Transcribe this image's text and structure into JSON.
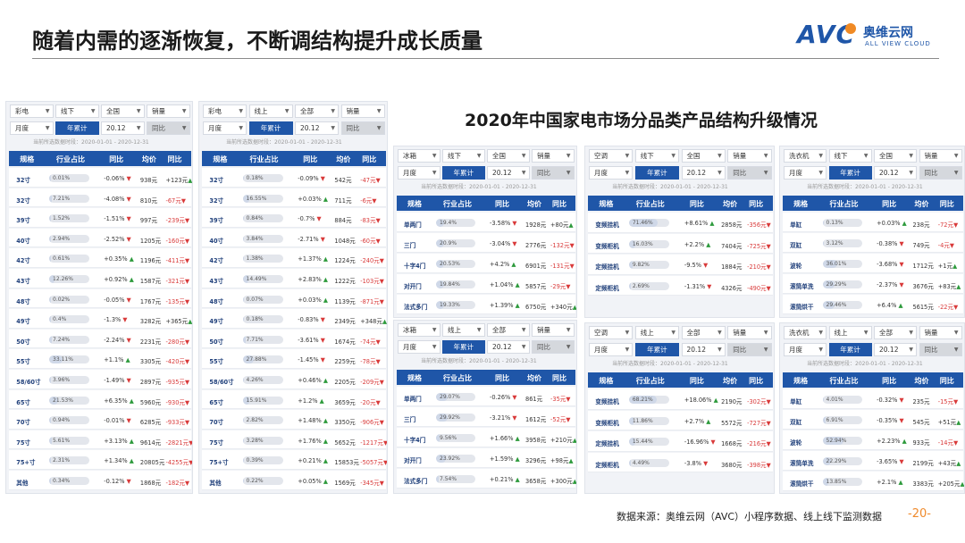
{
  "header": {
    "title": "随着内需的逐渐恢复，不断调结构提升成长质量",
    "logo_text": "AVC",
    "logo_cn": "奥维云网",
    "logo_en": "ALL VIEW CLOUD"
  },
  "chart_title": "2020年中国家电市场分品类产品结构升级情况",
  "footer": {
    "source": "数据来源：奥维云网（AVC）小程序数据、线上线下监测数据",
    "page": "-20-"
  },
  "panels": [
    {
      "left": true,
      "ctrl": {
        "cat": "彩电",
        "channel": "线下",
        "region": "全国",
        "metric": "销量",
        "period": "月度",
        "cum": "年累计",
        "date": "20.12",
        "cmp": "同比"
      },
      "note": "当前所选数据时段：2020-01-01 - 2020-12-31",
      "headers": [
        "规格",
        "行业占比",
        "同比",
        "均价",
        "同比"
      ],
      "rows": [
        [
          "32寸",
          "0.01%",
          "-0.06%",
          "938元",
          "+123元"
        ],
        [
          "32寸",
          "7.21%",
          "-4.08%",
          "810元",
          "-67元"
        ],
        [
          "39寸",
          "1.52%",
          "-1.51%",
          "997元",
          "-239元"
        ],
        [
          "40寸",
          "2.94%",
          "-2.52%",
          "1205元",
          "-160元"
        ],
        [
          "42寸",
          "0.61%",
          "+0.35%",
          "1196元",
          "-411元"
        ],
        [
          "43寸",
          "12.26%",
          "+0.92%",
          "1587元",
          "-321元"
        ],
        [
          "48寸",
          "0.02%",
          "-0.05%",
          "1767元",
          "-135元"
        ],
        [
          "49寸",
          "0.4%",
          "-1.3%",
          "3282元",
          "+365元"
        ],
        [
          "50寸",
          "7.24%",
          "-2.24%",
          "2231元",
          "-280元"
        ],
        [
          "55寸",
          "33.11%",
          "+1.1%",
          "3305元",
          "-420元"
        ],
        [
          "58/60寸",
          "3.96%",
          "-1.49%",
          "2897元",
          "-935元"
        ],
        [
          "65寸",
          "21.53%",
          "+6.35%",
          "5960元",
          "-930元"
        ],
        [
          "70寸",
          "0.94%",
          "-0.01%",
          "6285元",
          "-933元"
        ],
        [
          "75寸",
          "5.61%",
          "+3.13%",
          "9614元",
          "-2821元"
        ],
        [
          "75+寸",
          "2.31%",
          "+1.34%",
          "20805元",
          "-4255元"
        ],
        [
          "其他",
          "0.34%",
          "-0.12%",
          "1868元",
          "-182元"
        ]
      ]
    },
    {
      "ctrl": {
        "cat": "彩电",
        "channel": "线上",
        "region": "全部",
        "metric": "销量",
        "period": "月度",
        "cum": "年累计",
        "date": "20.12",
        "cmp": "同比"
      },
      "note": "当前所选数据时段：2020-01-01 - 2020-12-31",
      "headers": [
        "规格",
        "行业占比",
        "同比",
        "均价",
        "同比"
      ],
      "rows": [
        [
          "32寸",
          "0.18%",
          "-0.09%",
          "542元",
          "-47元"
        ],
        [
          "32寸",
          "16.55%",
          "+0.03%",
          "711元",
          "-6元"
        ],
        [
          "39寸",
          "0.84%",
          "-0.7%",
          "884元",
          "-83元"
        ],
        [
          "40寸",
          "3.84%",
          "-2.71%",
          "1048元",
          "-60元"
        ],
        [
          "42寸",
          "1.38%",
          "+1.37%",
          "1224元",
          "-240元"
        ],
        [
          "43寸",
          "14.49%",
          "+2.83%",
          "1222元",
          "-103元"
        ],
        [
          "48寸",
          "0.07%",
          "+0.03%",
          "1139元",
          "-871元"
        ],
        [
          "49寸",
          "0.18%",
          "-0.83%",
          "2349元",
          "+348元"
        ],
        [
          "50寸",
          "7.71%",
          "-3.61%",
          "1674元",
          "-74元"
        ],
        [
          "55寸",
          "27.88%",
          "-1.45%",
          "2259元",
          "-78元"
        ],
        [
          "58/60寸",
          "4.26%",
          "+0.46%",
          "2205元",
          "-209元"
        ],
        [
          "65寸",
          "15.91%",
          "+1.2%",
          "3659元",
          "-20元"
        ],
        [
          "70寸",
          "2.82%",
          "+1.48%",
          "3350元",
          "-906元"
        ],
        [
          "75寸",
          "3.28%",
          "+1.76%",
          "5652元",
          "-1217元"
        ],
        [
          "75+寸",
          "0.39%",
          "+0.21%",
          "15853元",
          "-5057元"
        ],
        [
          "其他",
          "0.22%",
          "+0.05%",
          "1569元",
          "-345元"
        ]
      ]
    },
    {
      "ctrl": {
        "cat": "冰箱",
        "channel": "线下",
        "region": "全国",
        "metric": "销量",
        "period": "月度",
        "cum": "年累计",
        "date": "20.12",
        "cmp": "同比"
      },
      "note": "当前所选数据时段：2020-01-01 - 2020-12-31",
      "headers": [
        "规格",
        "行业占比",
        "同比",
        "均价",
        "同比"
      ],
      "rows": [
        [
          "单两门",
          "19.4%",
          "-3.58%",
          "1928元",
          "+80元"
        ],
        [
          "三门",
          "20.9%",
          "-3.04%",
          "2776元",
          "-132元"
        ],
        [
          "十字4门",
          "20.53%",
          "+4.2%",
          "6901元",
          "-131元"
        ],
        [
          "对开门",
          "19.84%",
          "+1.04%",
          "5857元",
          "-29元"
        ],
        [
          "法式多门",
          "19.33%",
          "+1.39%",
          "6750元",
          "+340元"
        ]
      ]
    },
    {
      "ctrl": {
        "cat": "空调",
        "channel": "线下",
        "region": "全国",
        "metric": "销量",
        "period": "月度",
        "cum": "年累计",
        "date": "20.12",
        "cmp": "同比"
      },
      "note": "当前所选数据时段：2020-01-01 - 2020-12-31",
      "headers": [
        "规格",
        "行业占比",
        "同比",
        "均价",
        "同比"
      ],
      "rows": [
        [
          "变频挂机",
          "71.46%",
          "+8.61%",
          "2858元",
          "-356元"
        ],
        [
          "变频柜机",
          "16.03%",
          "+2.2%",
          "7404元",
          "-725元"
        ],
        [
          "定频挂机",
          "9.82%",
          "-9.5%",
          "1884元",
          "-210元"
        ],
        [
          "定频柜机",
          "2.69%",
          "-1.31%",
          "4326元",
          "-490元"
        ]
      ]
    },
    {
      "ctrl": {
        "cat": "洗衣机",
        "channel": "线下",
        "region": "全国",
        "metric": "销量",
        "period": "月度",
        "cum": "年累计",
        "date": "20.12",
        "cmp": "同比"
      },
      "note": "当前所选数据时段：2020-01-01 - 2020-12-31",
      "headers": [
        "规格",
        "行业占比",
        "同比",
        "均价",
        "同比"
      ],
      "rows": [
        [
          "单缸",
          "0.13%",
          "+0.03%",
          "238元",
          "-72元"
        ],
        [
          "双缸",
          "3.12%",
          "-0.38%",
          "749元",
          "-4元"
        ],
        [
          "波轮",
          "36.01%",
          "-3.68%",
          "1712元",
          "+1元"
        ],
        [
          "滚筒单洗",
          "29.29%",
          "-2.37%",
          "3676元",
          "+83元"
        ],
        [
          "滚筒烘干",
          "29.46%",
          "+6.4%",
          "5615元",
          "-22元"
        ]
      ]
    },
    {
      "ctrl": {
        "cat": "冰箱",
        "channel": "线上",
        "region": "全部",
        "metric": "销量",
        "period": "月度",
        "cum": "年累计",
        "date": "20.12",
        "cmp": "同比"
      },
      "note": "当前所选数据时段：2020-01-01 - 2020-12-31",
      "headers": [
        "规格",
        "行业占比",
        "同比",
        "均价",
        "同比"
      ],
      "rows": [
        [
          "单两门",
          "29.07%",
          "-0.26%",
          "861元",
          "-35元"
        ],
        [
          "三门",
          "29.92%",
          "-3.21%",
          "1612元",
          "-52元"
        ],
        [
          "十字4门",
          "9.56%",
          "+1.66%",
          "3958元",
          "+210元"
        ],
        [
          "对开门",
          "23.92%",
          "+1.59%",
          "3296元",
          "+98元"
        ],
        [
          "法式多门",
          "7.54%",
          "+0.21%",
          "3658元",
          "+300元"
        ]
      ]
    },
    {
      "ctrl": {
        "cat": "空调",
        "channel": "线上",
        "region": "全部",
        "metric": "销量",
        "period": "月度",
        "cum": "年累计",
        "date": "20.12",
        "cmp": "同比"
      },
      "note": "当前所选数据时段：2020-01-01 - 2020-12-31",
      "headers": [
        "规格",
        "行业占比",
        "同比",
        "均价",
        "同比"
      ],
      "rows": [
        [
          "变频挂机",
          "68.21%",
          "+18.06%",
          "2190元",
          "-302元"
        ],
        [
          "变频柜机",
          "11.86%",
          "+2.7%",
          "5572元",
          "-727元"
        ],
        [
          "定频挂机",
          "15.44%",
          "-16.96%",
          "1668元",
          "-216元"
        ],
        [
          "定频柜机",
          "4.49%",
          "-3.8%",
          "3680元",
          "-398元"
        ]
      ]
    },
    {
      "ctrl": {
        "cat": "洗衣机",
        "channel": "线上",
        "region": "全部",
        "metric": "销量",
        "period": "月度",
        "cum": "年累计",
        "date": "20.12",
        "cmp": "同比"
      },
      "note": "当前所选数据时段：2020-01-01 - 2020-12-31",
      "headers": [
        "规格",
        "行业占比",
        "同比",
        "均价",
        "同比"
      ],
      "rows": [
        [
          "单缸",
          "4.01%",
          "-0.32%",
          "235元",
          "-15元"
        ],
        [
          "双缸",
          "6.91%",
          "-0.35%",
          "545元",
          "+51元"
        ],
        [
          "波轮",
          "52.94%",
          "+2.23%",
          "933元",
          "-14元"
        ],
        [
          "滚筒单洗",
          "22.29%",
          "-3.65%",
          "2199元",
          "+43元"
        ],
        [
          "滚筒烘干",
          "13.85%",
          "+2.1%",
          "3383元",
          "+205元"
        ]
      ]
    }
  ]
}
